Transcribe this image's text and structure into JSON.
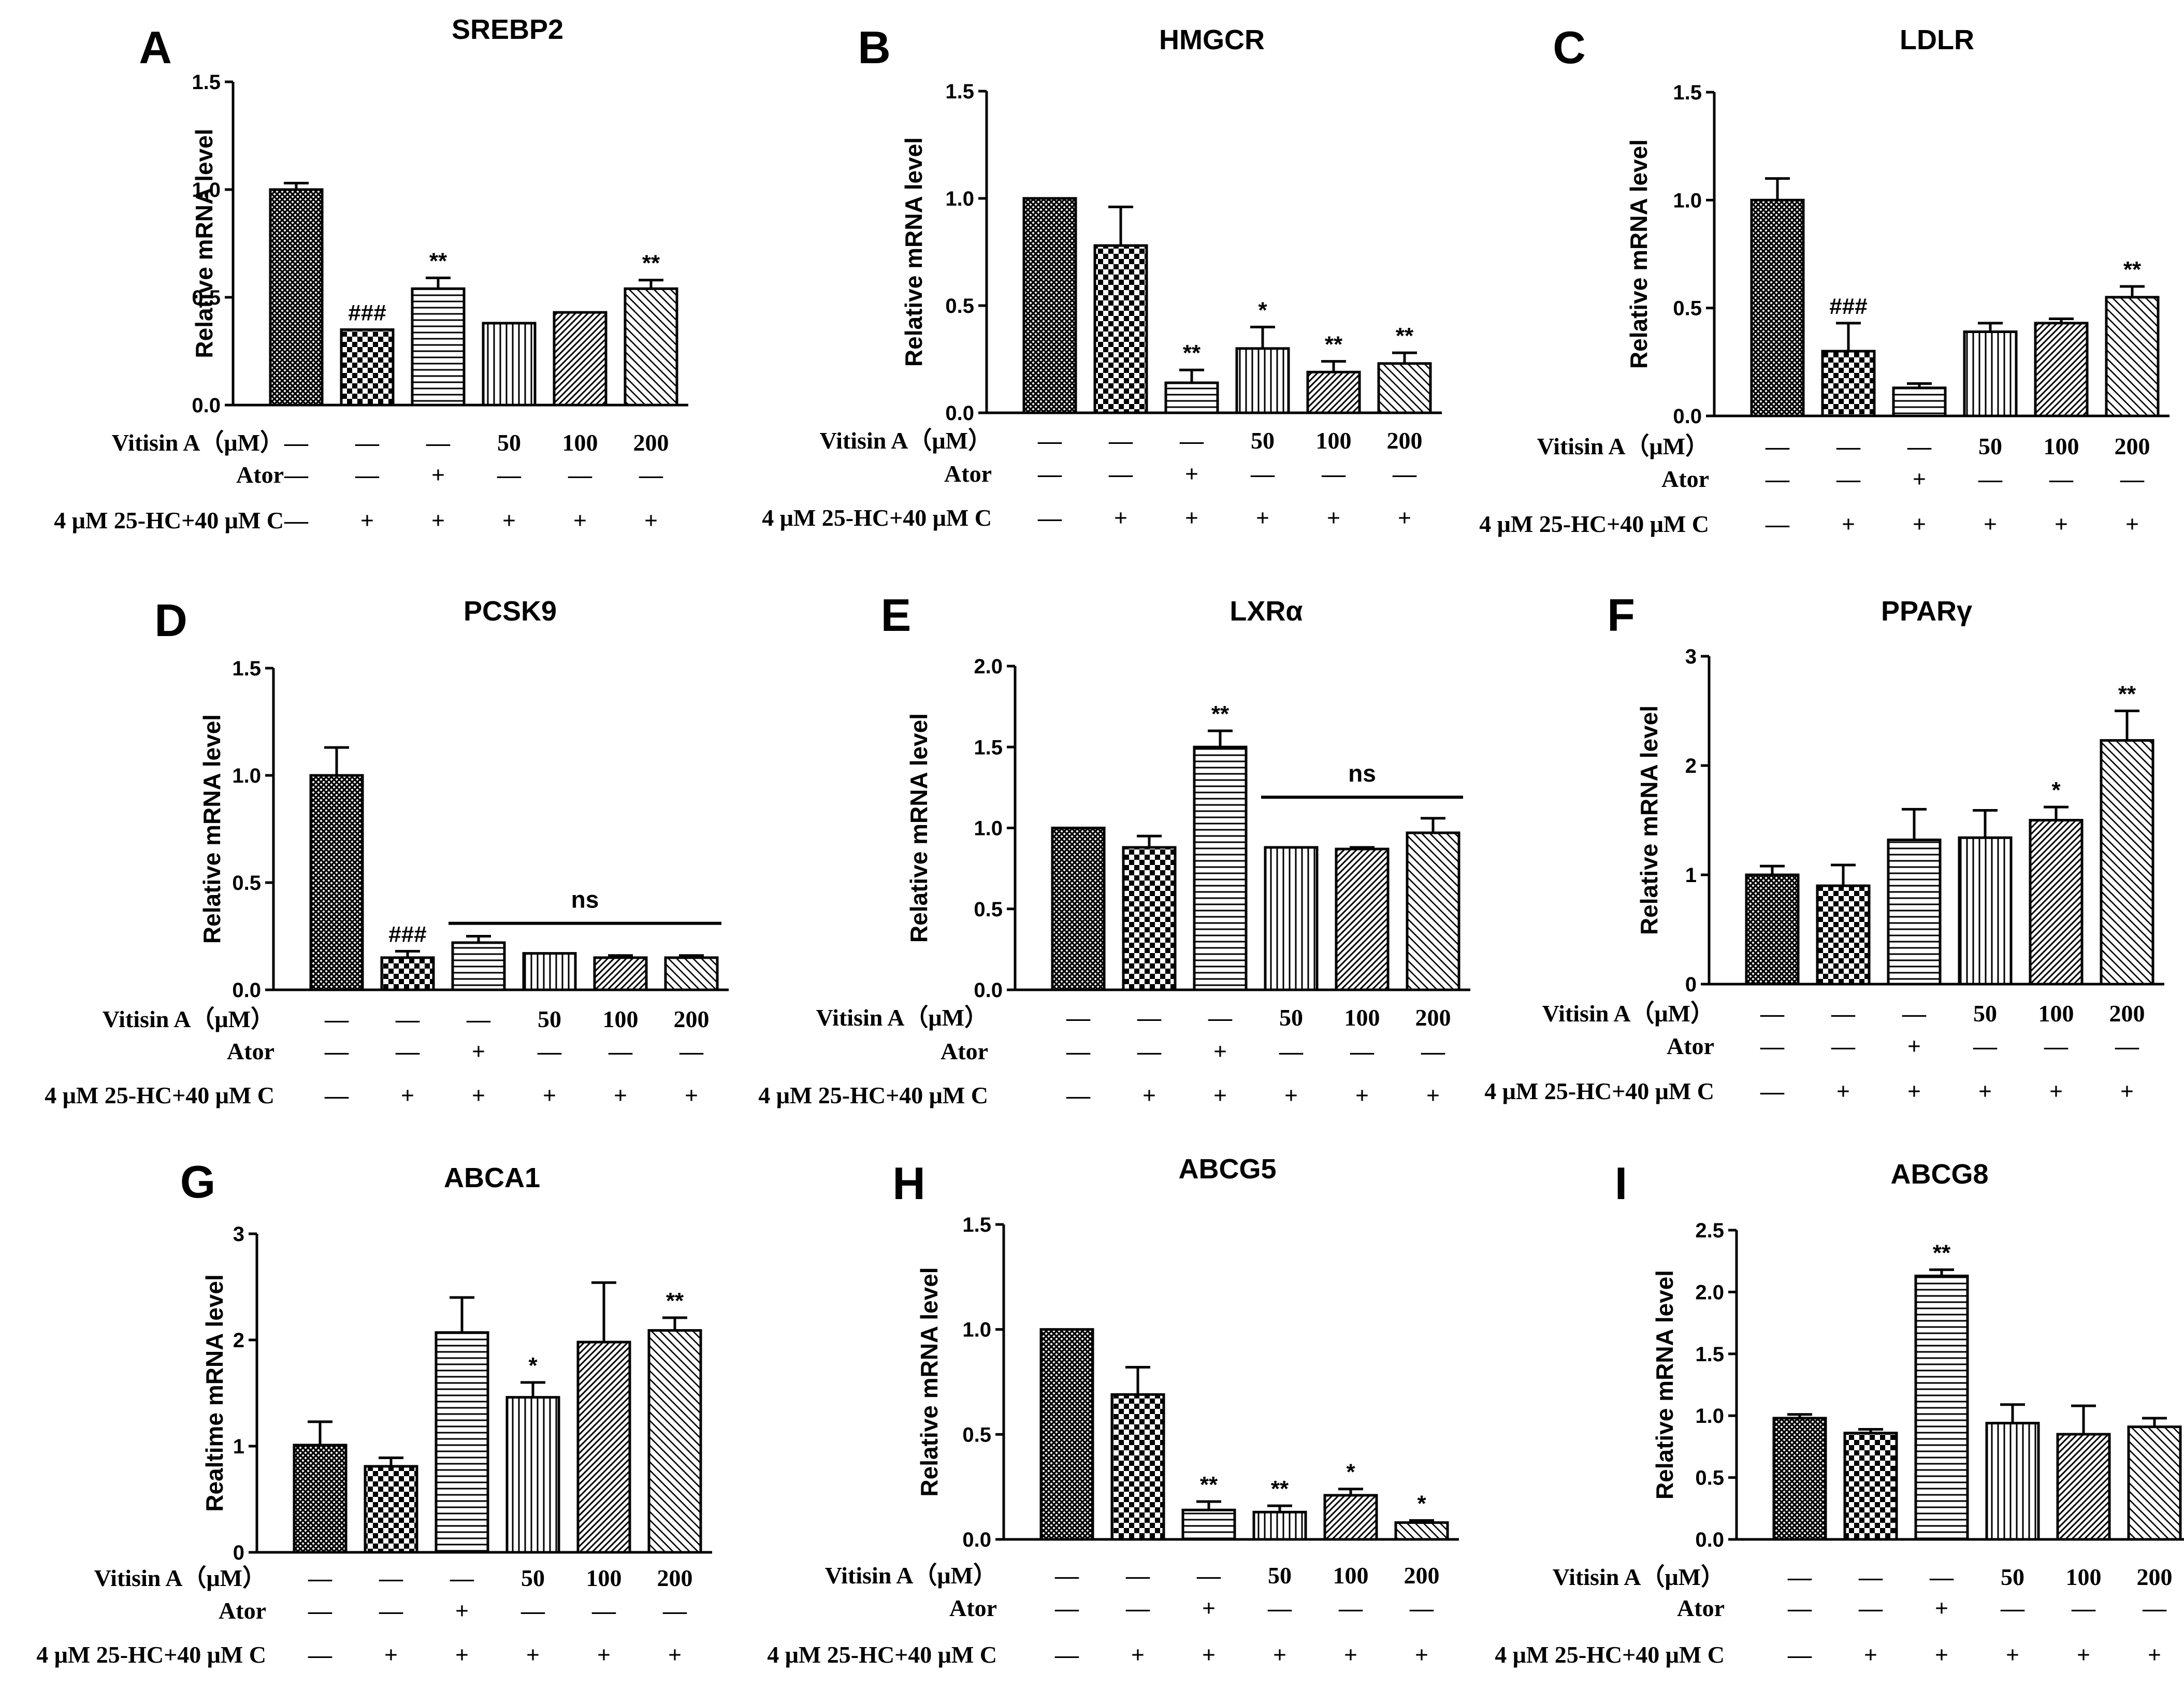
{
  "figure": {
    "conditions": {
      "vitisin_label": "Vitisin A（μM）",
      "ator_label": "Ator",
      "hc_label": "4 μM 25-HC+40 μM C",
      "vitisin_values": [
        "—",
        "—",
        "—",
        "50",
        "100",
        "200"
      ],
      "ator_values": [
        "—",
        "—",
        "+",
        "—",
        "—",
        "—"
      ],
      "hc_values": [
        "—",
        "+",
        "+",
        "+",
        "+",
        "+"
      ]
    }
  },
  "chart_data": [
    {
      "panel": "A",
      "type": "bar",
      "title": "SREBP2",
      "ylabel": "Relative mRNA level",
      "ylim": [
        0,
        1.5
      ],
      "yticks": [
        "0.0",
        "0.5",
        "1.0",
        "1.5"
      ],
      "values": [
        1.0,
        0.35,
        0.54,
        0.38,
        0.43,
        0.54
      ],
      "errors": [
        0.03,
        0.0,
        0.05,
        0.0,
        0.0,
        0.04
      ],
      "annotations": [
        "",
        "###",
        "**",
        "",
        "",
        "**"
      ]
    },
    {
      "panel": "B",
      "type": "bar",
      "title": "HMGCR",
      "ylabel": "Relative mRNA level",
      "ylim": [
        0,
        1.5
      ],
      "yticks": [
        "0.0",
        "0.5",
        "1.0",
        "1.5"
      ],
      "values": [
        1.0,
        0.78,
        0.14,
        0.3,
        0.19,
        0.23
      ],
      "errors": [
        0.0,
        0.18,
        0.06,
        0.1,
        0.05,
        0.05
      ],
      "annotations": [
        "",
        "",
        "**",
        "*",
        "**",
        "**"
      ]
    },
    {
      "panel": "C",
      "type": "bar",
      "title": "LDLR",
      "ylabel": "Relative mRNA level",
      "ylim": [
        0,
        1.5
      ],
      "yticks": [
        "0.0",
        "0.5",
        "1.0",
        "1.5"
      ],
      "values": [
        1.0,
        0.3,
        0.13,
        0.39,
        0.43,
        0.55
      ],
      "errors": [
        0.1,
        0.13,
        0.02,
        0.04,
        0.02,
        0.05
      ],
      "annotations": [
        "",
        "###",
        "",
        "",
        "",
        "**"
      ]
    },
    {
      "panel": "D",
      "type": "bar",
      "title": "PCSK9",
      "ylabel": "Relative mRNA level",
      "ylim": [
        0,
        1.5
      ],
      "yticks": [
        "0.0",
        "0.5",
        "1.0",
        "1.5"
      ],
      "values": [
        1.0,
        0.15,
        0.22,
        0.17,
        0.15,
        0.15
      ],
      "errors": [
        0.13,
        0.03,
        0.03,
        0.0,
        0.01,
        0.01
      ],
      "annotations": [
        "",
        "###",
        "",
        "",
        "",
        ""
      ],
      "ns_bracket": {
        "label": "ns",
        "from_index": 2,
        "to_index": 5,
        "y": 0.31
      }
    },
    {
      "panel": "E",
      "type": "bar",
      "title": "LXRα",
      "ylabel": "Relative mRNA level",
      "ylim": [
        0,
        2.0
      ],
      "yticks": [
        "0.0",
        "0.5",
        "1.0",
        "1.5",
        "2.0"
      ],
      "values": [
        1.0,
        0.88,
        1.5,
        0.88,
        0.87,
        0.97
      ],
      "errors": [
        0.0,
        0.07,
        0.1,
        0.0,
        0.01,
        0.09
      ],
      "annotations": [
        "",
        "",
        "**",
        "",
        "",
        ""
      ],
      "ns_bracket": {
        "label": "ns",
        "from_index": 3,
        "to_index": 5,
        "y": 1.19
      }
    },
    {
      "panel": "F",
      "type": "bar",
      "title": "PPARγ",
      "ylabel": "Relative mRNA level",
      "ylim": [
        0,
        3
      ],
      "yticks": [
        "0",
        "1",
        "2",
        "3"
      ],
      "values": [
        1.0,
        0.9,
        1.32,
        1.34,
        1.5,
        2.23
      ],
      "errors": [
        0.08,
        0.19,
        0.28,
        0.25,
        0.12,
        0.27
      ],
      "annotations": [
        "",
        "",
        "",
        "",
        "*",
        "**"
      ]
    },
    {
      "panel": "G",
      "type": "bar",
      "title": "ABCA1",
      "ylabel": "Realtime mRNA level",
      "ylim": [
        0,
        3
      ],
      "yticks": [
        "0",
        "1",
        "2",
        "3"
      ],
      "values": [
        1.01,
        0.81,
        2.07,
        1.46,
        1.98,
        2.09
      ],
      "errors": [
        0.22,
        0.08,
        0.33,
        0.14,
        0.56,
        0.12
      ],
      "annotations": [
        "",
        "",
        "",
        "*",
        "",
        "**"
      ]
    },
    {
      "panel": "H",
      "type": "bar",
      "title": "ABCG5",
      "ylabel": "Relative mRNA level",
      "ylim": [
        0,
        1.5
      ],
      "yticks": [
        "0.0",
        "0.5",
        "1.0",
        "1.5"
      ],
      "values": [
        1.0,
        0.69,
        0.14,
        0.13,
        0.21,
        0.08
      ],
      "errors": [
        0.0,
        0.13,
        0.04,
        0.03,
        0.03,
        0.01
      ],
      "annotations": [
        "",
        "",
        "**",
        "**",
        "*",
        "*"
      ]
    },
    {
      "panel": "I",
      "type": "bar",
      "title": "ABCG8",
      "ylabel": "Relative mRNA level",
      "ylim": [
        0,
        2.5
      ],
      "yticks": [
        "0.0",
        "0.5",
        "1.0",
        "1.5",
        "2.0",
        "2.5"
      ],
      "values": [
        0.98,
        0.86,
        2.13,
        0.94,
        0.85,
        0.91
      ],
      "errors": [
        0.03,
        0.03,
        0.05,
        0.15,
        0.23,
        0.07
      ],
      "annotations": [
        "",
        "",
        "**",
        "",
        "",
        ""
      ]
    }
  ]
}
